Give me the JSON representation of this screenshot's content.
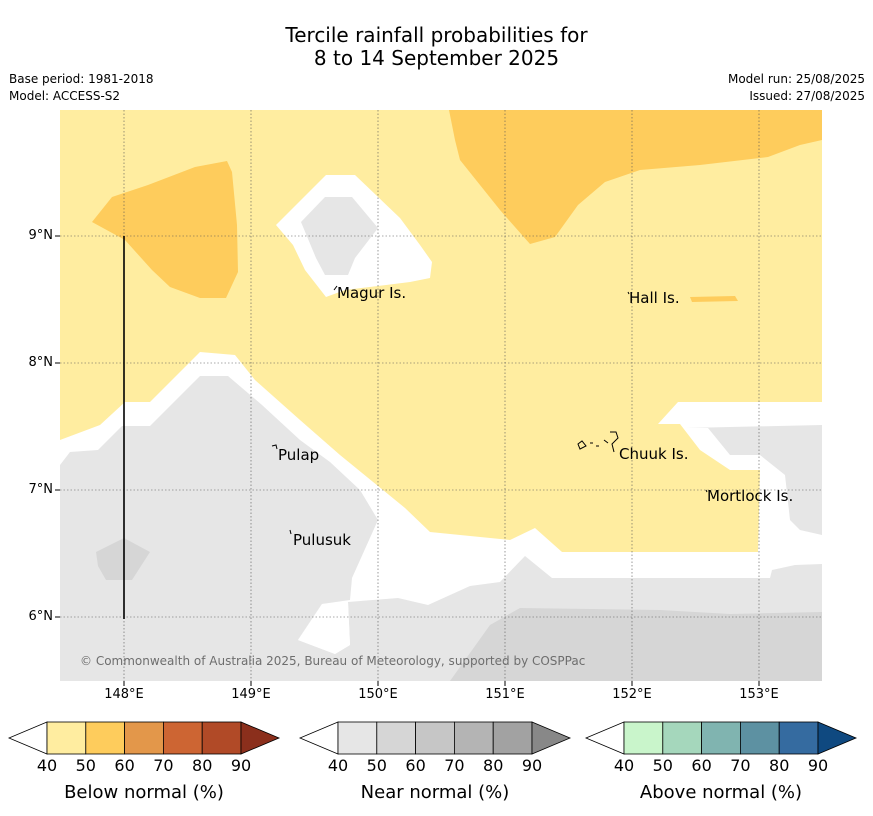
{
  "header": {
    "title_line1": "Tercile rainfall probabilities for",
    "title_line2": "8 to 14 September 2025",
    "base_period": "Base period: 1981-2018",
    "model": "Model: ACCESS-S2",
    "model_run": "Model run: 25/08/2025",
    "issued": "Issued: 27/08/2025"
  },
  "map": {
    "lat_labels": [
      "9°N",
      "8°N",
      "7°N",
      "6°N"
    ],
    "lon_labels": [
      "148°E",
      "149°E",
      "150°E",
      "151°E",
      "152°E",
      "153°E"
    ],
    "places": [
      "Magur Is.",
      "Hall Is.",
      "Pulap",
      "Chuuk Is.",
      "Mortlock Is.",
      "Pulusuk"
    ],
    "copyright": "© Commonwealth of Australia 2025, Bureau of Meteorology, supported by COSPPac"
  },
  "colorbars": [
    {
      "title": "Below normal (%)",
      "ticks": [
        "40",
        "50",
        "60",
        "70",
        "80",
        "90"
      ],
      "colors": [
        "#ffeda0",
        "#fecc5c",
        "#e3974a",
        "#cd6533",
        "#b14a27",
        "#8b2f1c"
      ]
    },
    {
      "title": "Near normal (%)",
      "ticks": [
        "40",
        "50",
        "60",
        "70",
        "80",
        "90"
      ],
      "colors": [
        "#e6e6e6",
        "#d6d6d6",
        "#c6c6c6",
        "#b4b4b4",
        "#a2a2a2",
        "#888888"
      ]
    },
    {
      "title": "Above normal (%)",
      "ticks": [
        "40",
        "50",
        "60",
        "70",
        "80",
        "90"
      ],
      "colors": [
        "#c9f5cb",
        "#a5d7bc",
        "#80b4b0",
        "#5d91a2",
        "#356ba0",
        "#0f4980"
      ]
    }
  ]
}
